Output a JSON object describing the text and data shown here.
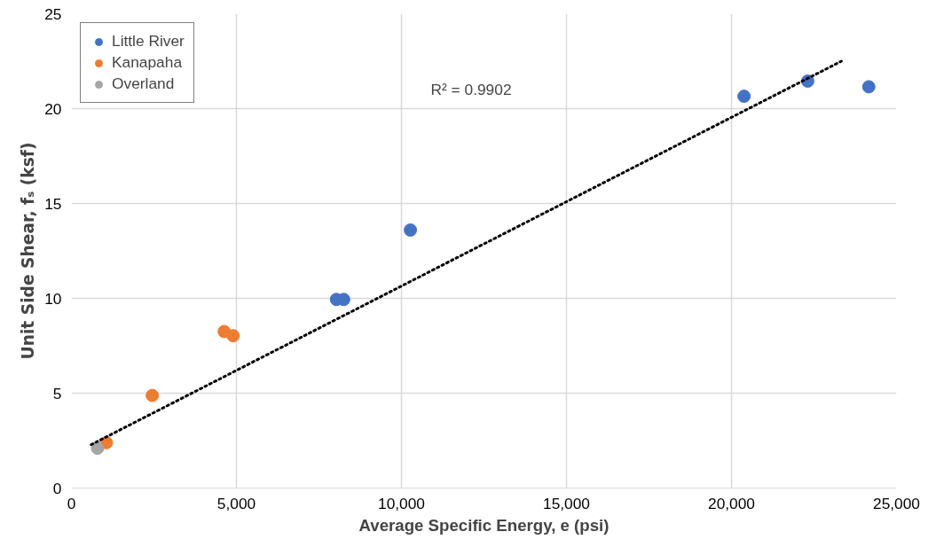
{
  "chart_data": {
    "type": "scatter",
    "xlabel": "Average Specific Energy, e (psi)",
    "ylabel": "Unit Side Shear, fₛ (ksf)",
    "xlim": [
      0,
      25000
    ],
    "ylim": [
      0,
      25
    ],
    "xticks": [
      {
        "value": 0,
        "label": "0"
      },
      {
        "value": 5000,
        "label": "5,000"
      },
      {
        "value": 10000,
        "label": "10,000"
      },
      {
        "value": 15000,
        "label": "15,000"
      },
      {
        "value": 20000,
        "label": "20,000"
      },
      {
        "value": 25000,
        "label": "25,000"
      }
    ],
    "yticks": [
      0,
      5,
      10,
      15,
      20,
      25
    ],
    "grid": true,
    "legend": "top left",
    "marker": "circle",
    "series": [
      {
        "name": "Little River",
        "color": "#4472c4",
        "x": [
          8030,
          8250,
          10270,
          20380,
          22310,
          24160
        ],
        "values": [
          9.94,
          9.94,
          13.6,
          20.65,
          21.45,
          21.15
        ]
      },
      {
        "name": "Kanapaha",
        "color": "#ed7d31",
        "x": [
          4630,
          4900,
          2450,
          1060
        ],
        "values": [
          8.25,
          8.03,
          4.88,
          2.39
        ]
      },
      {
        "name": "Overland",
        "color": "#a5a5a5",
        "x": [
          790
        ],
        "values": [
          2.1
        ]
      },
      {
        "type": "line",
        "color": "#000000",
        "line_style": "dotted",
        "marker": "none",
        "x": [
          600,
          23330
        ],
        "values": [
          2.29,
          22.5
        ]
      }
    ],
    "annotations": [
      "R² = 0.9902"
    ]
  }
}
